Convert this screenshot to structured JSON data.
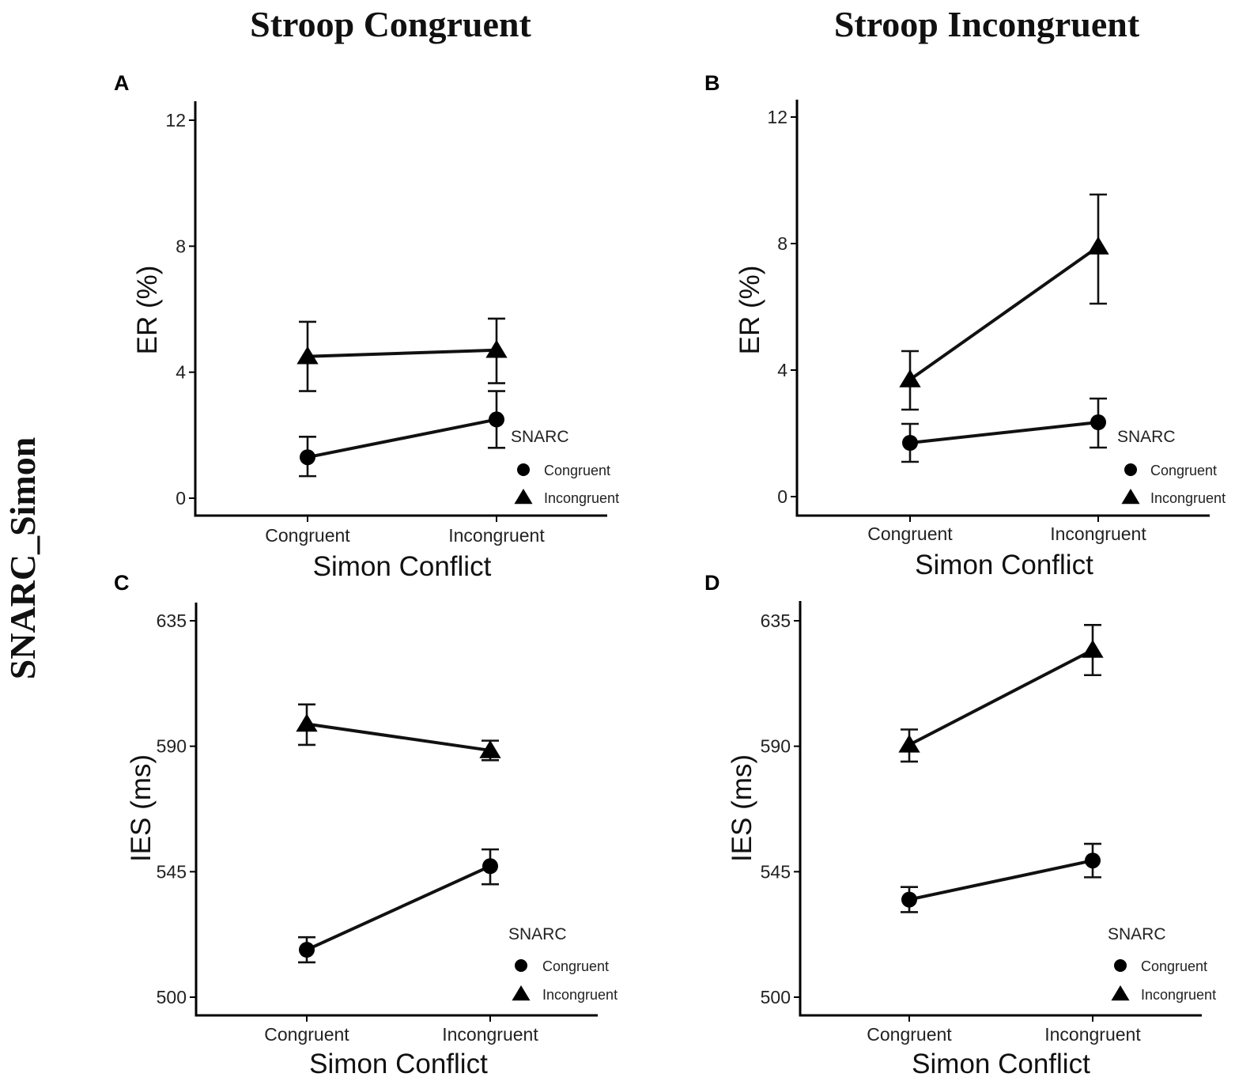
{
  "figure": {
    "column_titles": [
      "Stroop Congruent",
      "Stroop Incongruent"
    ],
    "row_title": "SNARC_Simon"
  },
  "chart_data": [
    {
      "panel": "A",
      "type": "line",
      "title": "Stroop Congruent",
      "xlabel": "Simon Conflict",
      "ylabel": "ER (%)",
      "categories": [
        "Congruent",
        "Incongruent"
      ],
      "ylim": [
        -0.5,
        12.6
      ],
      "yticks": [
        0,
        4,
        8,
        12
      ],
      "legend": {
        "title": "SNARC",
        "entries": [
          "Congruent",
          "Incongruent"
        ],
        "placement": "bottom-right"
      },
      "series": [
        {
          "name": "Congruent",
          "marker": "circle",
          "values": [
            1.3,
            2.5
          ],
          "err_low": [
            0.7,
            1.6
          ],
          "err_high": [
            1.95,
            3.4
          ]
        },
        {
          "name": "Incongruent",
          "marker": "triangle",
          "values": [
            4.5,
            4.7
          ],
          "err_low": [
            3.4,
            3.65
          ],
          "err_high": [
            5.6,
            5.7
          ]
        }
      ]
    },
    {
      "panel": "B",
      "type": "line",
      "title": "Stroop Incongruent",
      "xlabel": "Simon Conflict",
      "ylabel": "ER (%)",
      "categories": [
        "Congruent",
        "Incongruent"
      ],
      "ylim": [
        -0.6,
        12.6
      ],
      "yticks": [
        0,
        4,
        8,
        12
      ],
      "legend": {
        "title": "SNARC",
        "entries": [
          "Congruent",
          "Incongruent"
        ],
        "placement": "bottom-right"
      },
      "series": [
        {
          "name": "Congruent",
          "marker": "circle",
          "values": [
            1.7,
            2.35
          ],
          "err_low": [
            1.1,
            1.55
          ],
          "err_high": [
            2.3,
            3.1
          ]
        },
        {
          "name": "Incongruent",
          "marker": "triangle",
          "values": [
            3.7,
            7.9
          ],
          "err_low": [
            2.75,
            6.1
          ],
          "err_high": [
            4.6,
            9.55
          ]
        }
      ]
    },
    {
      "panel": "C",
      "type": "line",
      "title": "Stroop Congruent",
      "xlabel": "Simon Conflict",
      "ylabel": "IES (ms)",
      "categories": [
        "Congruent",
        "Incongruent"
      ],
      "ylim": [
        493,
        641
      ],
      "yticks": [
        500,
        545,
        590,
        635
      ],
      "legend": {
        "title": "SNARC",
        "entries": [
          "Congruent",
          "Incongruent"
        ],
        "placement": "bottom-right"
      },
      "series": [
        {
          "name": "Congruent",
          "marker": "circle",
          "values": [
            517,
            547
          ],
          "err_low": [
            512.5,
            540.5
          ],
          "err_high": [
            521.5,
            553
          ]
        },
        {
          "name": "Incongruent",
          "marker": "triangle",
          "values": [
            598,
            588.5
          ],
          "err_low": [
            590.5,
            585
          ],
          "err_high": [
            605,
            592
          ]
        }
      ]
    },
    {
      "panel": "D",
      "type": "line",
      "title": "Stroop Incongruent",
      "xlabel": "Simon Conflict",
      "ylabel": "IES (ms)",
      "categories": [
        "Congruent",
        "Incongruent"
      ],
      "ylim": [
        493,
        641
      ],
      "yticks": [
        500,
        545,
        590,
        635
      ],
      "legend": {
        "title": "SNARC",
        "entries": [
          "Congruent",
          "Incongruent"
        ],
        "placement": "bottom-right"
      },
      "series": [
        {
          "name": "Congruent",
          "marker": "circle",
          "values": [
            535,
            549
          ],
          "err_low": [
            530.5,
            543
          ],
          "err_high": [
            539.5,
            555
          ]
        },
        {
          "name": "Incongruent",
          "marker": "triangle",
          "values": [
            590.5,
            624.5
          ],
          "err_low": [
            584.5,
            615.5
          ],
          "err_high": [
            596,
            633.5
          ]
        }
      ]
    }
  ]
}
